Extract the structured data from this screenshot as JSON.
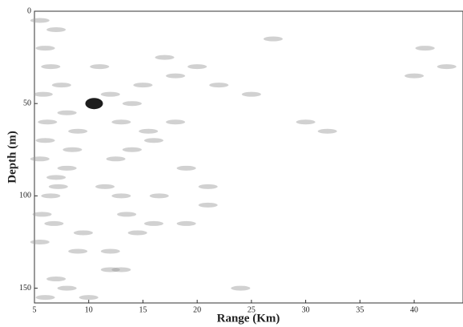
{
  "chart_data": {
    "type": "scatter",
    "xlabel": "Range (Km)",
    "ylabel": "Depth (m)",
    "xlim": [
      5,
      44.5
    ],
    "xticks": [
      5,
      10,
      15,
      20,
      25,
      30,
      35,
      40
    ],
    "ylim": [
      0,
      158
    ],
    "yticks": [
      0,
      50,
      100,
      150
    ],
    "y_inverted": true,
    "series": [
      {
        "color": "#9a9a9a",
        "x": [
          5.5,
          6,
          6.5,
          7,
          5.8,
          6.2,
          7.5,
          8,
          6,
          5.5,
          7,
          8.5,
          9,
          6.5,
          5.7,
          7.2,
          8,
          6.8,
          5.5,
          9.5,
          11,
          12,
          13,
          12.5,
          14,
          11.5,
          13.5,
          15,
          16,
          17,
          18,
          19,
          16.5,
          14.5,
          12,
          13,
          21,
          20,
          22,
          18,
          15.5,
          14,
          13,
          27,
          30,
          32,
          41,
          40,
          43,
          25,
          24,
          21,
          16,
          19,
          12,
          9,
          7,
          6,
          8,
          10
        ],
        "values": [
          5,
          20,
          30,
          10,
          45,
          60,
          40,
          55,
          70,
          80,
          90,
          75,
          65,
          100,
          110,
          95,
          85,
          115,
          125,
          120,
          30,
          45,
          60,
          80,
          50,
          95,
          110,
          40,
          70,
          25,
          35,
          85,
          100,
          120,
          130,
          140,
          95,
          30,
          40,
          60,
          65,
          75,
          100,
          15,
          60,
          65,
          20,
          35,
          30,
          45,
          150,
          105,
          115,
          115,
          140,
          130,
          145,
          155,
          150,
          155
        ]
      },
      {
        "color": "#111111",
        "x": [
          10.5
        ],
        "values": [
          50
        ]
      }
    ]
  }
}
